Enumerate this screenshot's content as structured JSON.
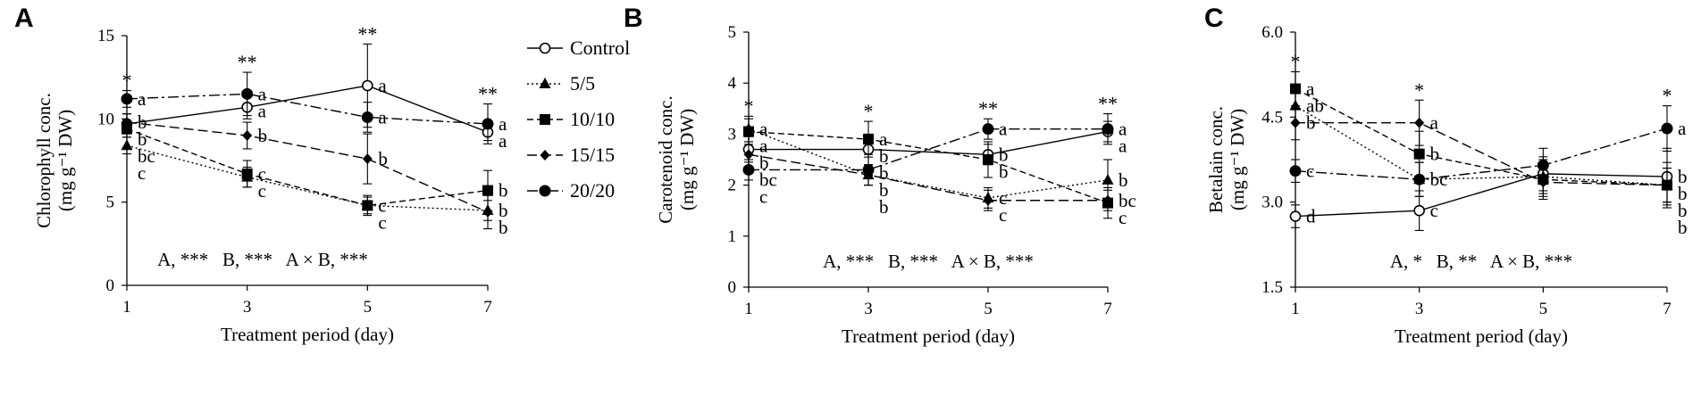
{
  "chart_data": [
    {
      "type": "line",
      "panel_label": "A",
      "ylabel": "Chlorophyll conc.",
      "ylabel_unit": "(mg g⁻¹ DW)",
      "xlabel": "Treatment period (day)",
      "x": [
        1,
        3,
        5,
        7
      ],
      "xticks": [
        "1",
        "3",
        "5",
        "7"
      ],
      "ylim": [
        0,
        15
      ],
      "yticks": [
        "0",
        "5",
        "10",
        "15"
      ],
      "series": [
        {
          "name": "Control",
          "values": [
            9.7,
            10.7,
            12.0,
            9.2
          ],
          "errors": [
            0.6,
            0.7,
            2.5,
            0.5
          ],
          "letters": [
            "b",
            "a",
            "a",
            "a"
          ]
        },
        {
          "name": "5/5",
          "values": [
            8.4,
            6.5,
            4.8,
            4.5
          ],
          "errors": [
            0.5,
            0.6,
            0.5,
            0.6
          ],
          "letters": [
            "c",
            "c",
            "c",
            "b"
          ]
        },
        {
          "name": "10/10",
          "values": [
            9.4,
            6.7,
            4.8,
            5.7
          ],
          "errors": [
            0.5,
            0.8,
            0.6,
            1.2
          ],
          "letters": [
            "bc",
            "c",
            "c",
            "b"
          ]
        },
        {
          "name": "15/15",
          "values": [
            9.8,
            9.0,
            7.6,
            4.4
          ],
          "errors": [
            0.5,
            0.8,
            1.5,
            1.0
          ],
          "letters": [
            "b",
            "b",
            "b",
            "b"
          ]
        },
        {
          "name": "20/20",
          "values": [
            11.2,
            11.5,
            10.1,
            9.7
          ],
          "errors": [
            0.5,
            1.3,
            0.9,
            1.2
          ],
          "letters": [
            "a",
            "a",
            "a",
            "a"
          ]
        }
      ],
      "significance": [
        "*",
        "**",
        "**",
        "**"
      ],
      "stats": "A, ***   B, ***   A × B, ***"
    },
    {
      "type": "line",
      "panel_label": "B",
      "ylabel": "Carotenoid conc.",
      "ylabel_unit": "(mg g⁻¹ DW)",
      "xlabel": "Treatment period (day)",
      "x": [
        1,
        3,
        5,
        7
      ],
      "xticks": [
        "1",
        "3",
        "5",
        "7"
      ],
      "ylim": [
        0,
        5
      ],
      "yticks": [
        "0",
        "1",
        "2",
        "3",
        "4",
        "5"
      ],
      "series": [
        {
          "name": "Control",
          "values": [
            2.7,
            2.7,
            2.6,
            3.05
          ],
          "errors": [
            0.25,
            0.3,
            0.2,
            0.2
          ],
          "letters": [
            "b",
            "b",
            "b",
            "a"
          ]
        },
        {
          "name": "5/5",
          "values": [
            3.1,
            2.2,
            1.75,
            2.1
          ],
          "errors": [
            0.25,
            0.2,
            0.2,
            0.4
          ],
          "letters": [
            "a",
            "b",
            "c",
            "b"
          ]
        },
        {
          "name": "10/10",
          "values": [
            3.05,
            2.9,
            2.5,
            1.65
          ],
          "errors": [
            0.25,
            0.35,
            0.35,
            0.3
          ],
          "letters": [
            "a",
            "a",
            "b",
            "c"
          ]
        },
        {
          "name": "15/15",
          "values": [
            2.6,
            2.2,
            1.7,
            1.7
          ],
          "errors": [
            0.25,
            0.2,
            0.2,
            0.2
          ],
          "letters": [
            "bc",
            "b",
            "c",
            "bc"
          ]
        },
        {
          "name": "20/20",
          "values": [
            2.3,
            2.3,
            3.1,
            3.1
          ],
          "errors": [
            0.2,
            0.3,
            0.2,
            0.3
          ],
          "letters": [
            "c",
            "b",
            "a",
            "a"
          ]
        }
      ],
      "significance": [
        "*",
        "*",
        "**",
        "**"
      ],
      "stats": "A, ***   B, ***   A × B, ***"
    },
    {
      "type": "line",
      "panel_label": "C",
      "ylabel": "Betalain conc.",
      "ylabel_unit": "(mg g⁻¹ DW)",
      "xlabel": "Treatment period (day)",
      "x": [
        1,
        3,
        5,
        7
      ],
      "xticks": [
        "1",
        "3",
        "5",
        "7"
      ],
      "ylim": [
        1.5,
        6.0
      ],
      "yticks": [
        "1.5",
        "3.0",
        "4.5",
        "6.0"
      ],
      "series": [
        {
          "name": "Control",
          "values": [
            2.75,
            2.85,
            3.5,
            3.45
          ],
          "errors": [
            0.2,
            0.35,
            0.3,
            0.5
          ],
          "letters": [
            "d",
            "c",
            "",
            "b"
          ]
        },
        {
          "name": "5/5",
          "values": [
            4.7,
            3.4,
            3.45,
            3.3
          ],
          "errors": [
            0.3,
            0.3,
            0.3,
            0.4
          ],
          "letters": [
            "ab",
            "bc",
            "",
            "b"
          ]
        },
        {
          "name": "10/10",
          "values": [
            5.0,
            3.85,
            3.4,
            3.3
          ],
          "errors": [
            0.3,
            0.4,
            0.3,
            0.3
          ],
          "letters": [
            "a",
            "b",
            "",
            "b"
          ]
        },
        {
          "name": "15/15",
          "values": [
            4.4,
            4.4,
            3.35,
            3.3
          ],
          "errors": [
            0.3,
            0.4,
            0.3,
            0.3
          ],
          "letters": [
            "b",
            "a",
            "",
            "b"
          ]
        },
        {
          "name": "20/20",
          "values": [
            3.55,
            3.4,
            3.65,
            4.3
          ],
          "errors": [
            0.2,
            0.3,
            0.3,
            0.4
          ],
          "letters": [
            "c",
            "",
            "",
            "a"
          ]
        }
      ],
      "significance": [
        "*",
        "*",
        "",
        "*"
      ],
      "stats": "A, *   B, **   A × B, ***"
    }
  ],
  "legend": {
    "placement": "top-right of panel A",
    "entries": [
      {
        "label": "Control",
        "marker": "open-circle",
        "line": "solid"
      },
      {
        "label": "5/5",
        "marker": "triangle",
        "line": "dotted"
      },
      {
        "label": "10/10",
        "marker": "square",
        "line": "dashed"
      },
      {
        "label": "15/15",
        "marker": "diamond",
        "line": "long-dash"
      },
      {
        "label": "20/20",
        "marker": "filled-circle",
        "line": "dash-dot"
      }
    ]
  }
}
